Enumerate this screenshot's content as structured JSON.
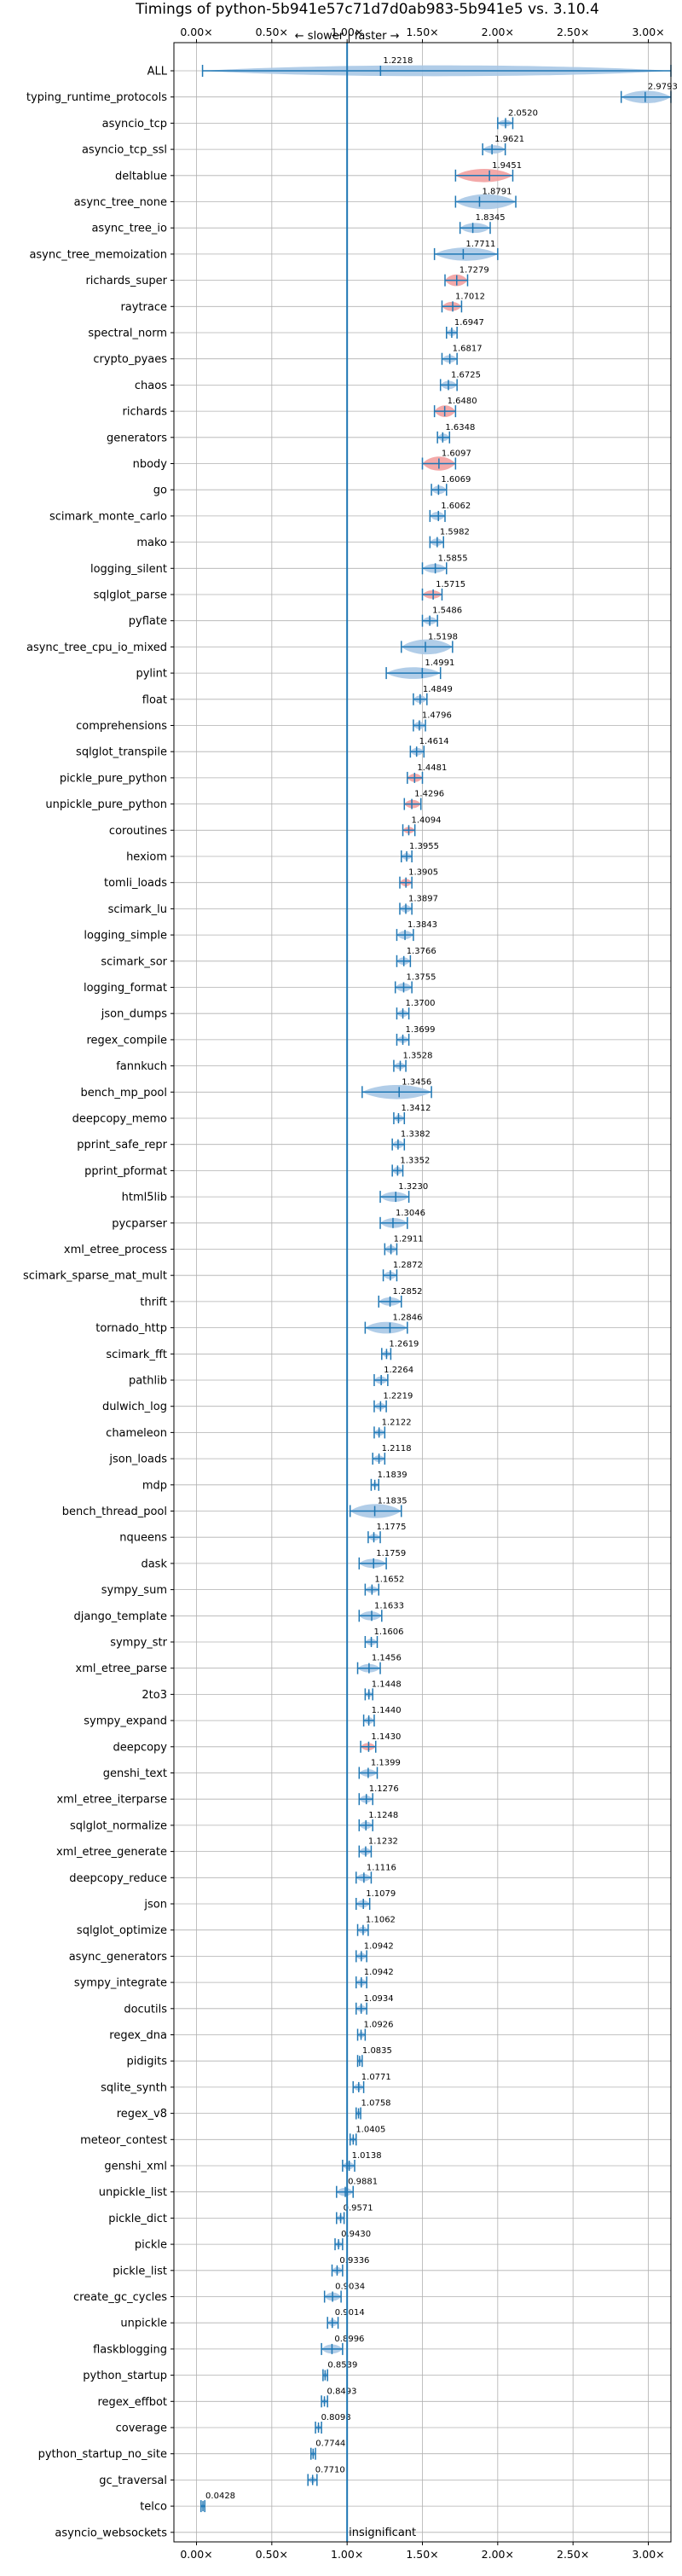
{
  "chart_data": {
    "type": "violin",
    "title": "Timings of python-5b941e57c71d7d0ab983-5b941e5 vs. 3.10.4",
    "xlim": [
      -0.15,
      3.15
    ],
    "xticks": [
      0,
      0.5,
      1,
      1.5,
      2,
      2.5,
      3
    ],
    "xticklabels": [
      "0.00×",
      "0.50×",
      "1.00×",
      "1.50×",
      "2.00×",
      "2.50×",
      "3.00×"
    ],
    "reference_line": 1.0,
    "annotation_top": "← slower | faster →",
    "annotation_bottom": "insignificant",
    "grid": true,
    "colors": {
      "line": "#1f77b4",
      "violin": "#a9c8e6",
      "violin_red": "#f2a0a0",
      "grid": "#b0b0b0"
    },
    "benchmarks": [
      {
        "name": "ALL",
        "value": 1.2218,
        "label": "1.2218",
        "min": 0.04,
        "max": 3.15,
        "width": 0.65,
        "color": "blue"
      },
      {
        "name": "typing_runtime_protocols",
        "value": 2.9793,
        "label": "2.9793",
        "min": 2.82,
        "max": 3.15,
        "width": 0.75,
        "color": "blue"
      },
      {
        "name": "asyncio_tcp",
        "value": 2.052,
        "label": "2.0520",
        "min": 2.0,
        "max": 2.1,
        "width": 0.4,
        "color": "blue"
      },
      {
        "name": "asyncio_tcp_ssl",
        "value": 1.9621,
        "label": "1.9621",
        "min": 1.9,
        "max": 2.05,
        "width": 0.5,
        "color": "blue"
      },
      {
        "name": "deltablue",
        "value": 1.9451,
        "label": "1.9451",
        "min": 1.72,
        "max": 2.1,
        "width": 0.8,
        "color": "red"
      },
      {
        "name": "async_tree_none",
        "value": 1.8791,
        "label": "1.8791",
        "min": 1.72,
        "max": 2.12,
        "width": 0.9,
        "color": "blue"
      },
      {
        "name": "async_tree_io",
        "value": 1.8345,
        "label": "1.8345",
        "min": 1.75,
        "max": 1.95,
        "width": 0.6,
        "color": "blue"
      },
      {
        "name": "async_tree_memoization",
        "value": 1.7711,
        "label": "1.7711",
        "min": 1.58,
        "max": 2.0,
        "width": 0.8,
        "color": "blue"
      },
      {
        "name": "richards_super",
        "value": 1.7279,
        "label": "1.7279",
        "min": 1.65,
        "max": 1.8,
        "width": 0.7,
        "color": "red"
      },
      {
        "name": "raytrace",
        "value": 1.7012,
        "label": "1.7012",
        "min": 1.63,
        "max": 1.76,
        "width": 0.55,
        "color": "red"
      },
      {
        "name": "spectral_norm",
        "value": 1.6947,
        "label": "1.6947",
        "min": 1.66,
        "max": 1.73,
        "width": 0.4,
        "color": "blue"
      },
      {
        "name": "crypto_pyaes",
        "value": 1.6817,
        "label": "1.6817",
        "min": 1.63,
        "max": 1.73,
        "width": 0.45,
        "color": "blue"
      },
      {
        "name": "chaos",
        "value": 1.6725,
        "label": "1.6725",
        "min": 1.62,
        "max": 1.73,
        "width": 0.5,
        "color": "blue"
      },
      {
        "name": "richards",
        "value": 1.648,
        "label": "1.6480",
        "min": 1.58,
        "max": 1.72,
        "width": 0.7,
        "color": "red"
      },
      {
        "name": "generators",
        "value": 1.6348,
        "label": "1.6348",
        "min": 1.6,
        "max": 1.68,
        "width": 0.45,
        "color": "blue"
      },
      {
        "name": "nbody",
        "value": 1.6097,
        "label": "1.6097",
        "min": 1.5,
        "max": 1.72,
        "width": 0.85,
        "color": "red"
      },
      {
        "name": "go",
        "value": 1.6069,
        "label": "1.6069",
        "min": 1.56,
        "max": 1.66,
        "width": 0.5,
        "color": "blue"
      },
      {
        "name": "scimark_monte_carlo",
        "value": 1.6062,
        "label": "1.6062",
        "min": 1.55,
        "max": 1.65,
        "width": 0.5,
        "color": "blue"
      },
      {
        "name": "mako",
        "value": 1.5982,
        "label": "1.5982",
        "min": 1.55,
        "max": 1.64,
        "width": 0.45,
        "color": "blue"
      },
      {
        "name": "logging_silent",
        "value": 1.5855,
        "label": "1.5855",
        "min": 1.5,
        "max": 1.66,
        "width": 0.55,
        "color": "blue"
      },
      {
        "name": "sqlglot_parse",
        "value": 1.5715,
        "label": "1.5715",
        "min": 1.5,
        "max": 1.63,
        "width": 0.5,
        "color": "red"
      },
      {
        "name": "pyflate",
        "value": 1.5486,
        "label": "1.5486",
        "min": 1.5,
        "max": 1.6,
        "width": 0.45,
        "color": "blue"
      },
      {
        "name": "async_tree_cpu_io_mixed",
        "value": 1.5198,
        "label": "1.5198",
        "min": 1.36,
        "max": 1.7,
        "width": 0.9,
        "color": "blue"
      },
      {
        "name": "pylint",
        "value": 1.4991,
        "label": "1.4991",
        "min": 1.26,
        "max": 1.62,
        "width": 0.7,
        "color": "blue"
      },
      {
        "name": "float",
        "value": 1.4849,
        "label": "1.4849",
        "min": 1.44,
        "max": 1.53,
        "width": 0.45,
        "color": "blue"
      },
      {
        "name": "comprehensions",
        "value": 1.4796,
        "label": "1.4796",
        "min": 1.44,
        "max": 1.52,
        "width": 0.45,
        "color": "blue"
      },
      {
        "name": "sqlglot_transpile",
        "value": 1.4614,
        "label": "1.4614",
        "min": 1.42,
        "max": 1.51,
        "width": 0.45,
        "color": "blue"
      },
      {
        "name": "pickle_pure_python",
        "value": 1.4481,
        "label": "1.4481",
        "min": 1.4,
        "max": 1.5,
        "width": 0.5,
        "color": "red"
      },
      {
        "name": "unpickle_pure_python",
        "value": 1.4296,
        "label": "1.4296",
        "min": 1.38,
        "max": 1.49,
        "width": 0.5,
        "color": "red"
      },
      {
        "name": "coroutines",
        "value": 1.4094,
        "label": "1.4094",
        "min": 1.37,
        "max": 1.45,
        "width": 0.4,
        "color": "red"
      },
      {
        "name": "hexiom",
        "value": 1.3955,
        "label": "1.3955",
        "min": 1.36,
        "max": 1.43,
        "width": 0.4,
        "color": "blue"
      },
      {
        "name": "tomli_loads",
        "value": 1.3905,
        "label": "1.3905",
        "min": 1.35,
        "max": 1.43,
        "width": 0.45,
        "color": "red"
      },
      {
        "name": "scimark_lu",
        "value": 1.3897,
        "label": "1.3897",
        "min": 1.35,
        "max": 1.43,
        "width": 0.45,
        "color": "blue"
      },
      {
        "name": "logging_simple",
        "value": 1.3843,
        "label": "1.3843",
        "min": 1.33,
        "max": 1.44,
        "width": 0.5,
        "color": "blue"
      },
      {
        "name": "scimark_sor",
        "value": 1.3766,
        "label": "1.3766",
        "min": 1.33,
        "max": 1.42,
        "width": 0.45,
        "color": "blue"
      },
      {
        "name": "logging_format",
        "value": 1.3755,
        "label": "1.3755",
        "min": 1.32,
        "max": 1.43,
        "width": 0.5,
        "color": "blue"
      },
      {
        "name": "json_dumps",
        "value": 1.37,
        "label": "1.3700",
        "min": 1.33,
        "max": 1.41,
        "width": 0.4,
        "color": "blue"
      },
      {
        "name": "regex_compile",
        "value": 1.3699,
        "label": "1.3699",
        "min": 1.33,
        "max": 1.41,
        "width": 0.4,
        "color": "blue"
      },
      {
        "name": "fannkuch",
        "value": 1.3528,
        "label": "1.3528",
        "min": 1.31,
        "max": 1.39,
        "width": 0.4,
        "color": "blue"
      },
      {
        "name": "bench_mp_pool",
        "value": 1.3456,
        "label": "1.3456",
        "min": 1.1,
        "max": 1.56,
        "width": 0.85,
        "color": "blue"
      },
      {
        "name": "deepcopy_memo",
        "value": 1.3412,
        "label": "1.3412",
        "min": 1.31,
        "max": 1.38,
        "width": 0.4,
        "color": "blue"
      },
      {
        "name": "pprint_safe_repr",
        "value": 1.3382,
        "label": "1.3382",
        "min": 1.3,
        "max": 1.38,
        "width": 0.45,
        "color": "blue"
      },
      {
        "name": "pprint_pformat",
        "value": 1.3352,
        "label": "1.3352",
        "min": 1.3,
        "max": 1.37,
        "width": 0.45,
        "color": "blue"
      },
      {
        "name": "html5lib",
        "value": 1.323,
        "label": "1.3230",
        "min": 1.22,
        "max": 1.41,
        "width": 0.6,
        "color": "blue"
      },
      {
        "name": "pycparser",
        "value": 1.3046,
        "label": "1.3046",
        "min": 1.22,
        "max": 1.4,
        "width": 0.6,
        "color": "blue"
      },
      {
        "name": "xml_etree_process",
        "value": 1.2911,
        "label": "1.2911",
        "min": 1.25,
        "max": 1.33,
        "width": 0.45,
        "color": "blue"
      },
      {
        "name": "scimark_sparse_mat_mult",
        "value": 1.2872,
        "label": "1.2872",
        "min": 1.24,
        "max": 1.33,
        "width": 0.45,
        "color": "blue"
      },
      {
        "name": "thrift",
        "value": 1.2852,
        "label": "1.2852",
        "min": 1.21,
        "max": 1.36,
        "width": 0.5,
        "color": "blue"
      },
      {
        "name": "tornado_http",
        "value": 1.2846,
        "label": "1.2846",
        "min": 1.12,
        "max": 1.4,
        "width": 0.7,
        "color": "blue"
      },
      {
        "name": "scimark_fft",
        "value": 1.2619,
        "label": "1.2619",
        "min": 1.23,
        "max": 1.29,
        "width": 0.35,
        "color": "blue"
      },
      {
        "name": "pathlib",
        "value": 1.2264,
        "label": "1.2264",
        "min": 1.18,
        "max": 1.27,
        "width": 0.45,
        "color": "blue"
      },
      {
        "name": "dulwich_log",
        "value": 1.2219,
        "label": "1.2219",
        "min": 1.18,
        "max": 1.26,
        "width": 0.4,
        "color": "blue"
      },
      {
        "name": "chameleon",
        "value": 1.2122,
        "label": "1.2122",
        "min": 1.18,
        "max": 1.25,
        "width": 0.4,
        "color": "blue"
      },
      {
        "name": "json_loads",
        "value": 1.2118,
        "label": "1.2118",
        "min": 1.17,
        "max": 1.25,
        "width": 0.4,
        "color": "blue"
      },
      {
        "name": "mdp",
        "value": 1.1839,
        "label": "1.1839",
        "min": 1.16,
        "max": 1.21,
        "width": 0.3,
        "color": "blue"
      },
      {
        "name": "bench_thread_pool",
        "value": 1.1835,
        "label": "1.1835",
        "min": 1.02,
        "max": 1.36,
        "width": 0.85,
        "color": "blue"
      },
      {
        "name": "nqueens",
        "value": 1.1775,
        "label": "1.1775",
        "min": 1.14,
        "max": 1.22,
        "width": 0.4,
        "color": "blue"
      },
      {
        "name": "dask",
        "value": 1.1759,
        "label": "1.1759",
        "min": 1.08,
        "max": 1.26,
        "width": 0.55,
        "color": "blue"
      },
      {
        "name": "sympy_sum",
        "value": 1.1652,
        "label": "1.1652",
        "min": 1.12,
        "max": 1.21,
        "width": 0.4,
        "color": "blue"
      },
      {
        "name": "django_template",
        "value": 1.1633,
        "label": "1.1633",
        "min": 1.08,
        "max": 1.23,
        "width": 0.55,
        "color": "blue"
      },
      {
        "name": "sympy_str",
        "value": 1.1606,
        "label": "1.1606",
        "min": 1.12,
        "max": 1.2,
        "width": 0.4,
        "color": "blue"
      },
      {
        "name": "xml_etree_parse",
        "value": 1.1456,
        "label": "1.1456",
        "min": 1.07,
        "max": 1.22,
        "width": 0.5,
        "color": "blue"
      },
      {
        "name": "2to3",
        "value": 1.1448,
        "label": "1.1448",
        "min": 1.12,
        "max": 1.17,
        "width": 0.35,
        "color": "blue"
      },
      {
        "name": "sympy_expand",
        "value": 1.144,
        "label": "1.1440",
        "min": 1.11,
        "max": 1.18,
        "width": 0.4,
        "color": "blue"
      },
      {
        "name": "deepcopy",
        "value": 1.143,
        "label": "1.1430",
        "min": 1.09,
        "max": 1.19,
        "width": 0.45,
        "color": "red"
      },
      {
        "name": "genshi_text",
        "value": 1.1399,
        "label": "1.1399",
        "min": 1.08,
        "max": 1.2,
        "width": 0.45,
        "color": "blue"
      },
      {
        "name": "xml_etree_iterparse",
        "value": 1.1276,
        "label": "1.1276",
        "min": 1.08,
        "max": 1.17,
        "width": 0.45,
        "color": "blue"
      },
      {
        "name": "sqlglot_normalize",
        "value": 1.1248,
        "label": "1.1248",
        "min": 1.08,
        "max": 1.17,
        "width": 0.45,
        "color": "blue"
      },
      {
        "name": "xml_etree_generate",
        "value": 1.1232,
        "label": "1.1232",
        "min": 1.08,
        "max": 1.16,
        "width": 0.45,
        "color": "blue"
      },
      {
        "name": "deepcopy_reduce",
        "value": 1.1116,
        "label": "1.1116",
        "min": 1.06,
        "max": 1.16,
        "width": 0.45,
        "color": "blue"
      },
      {
        "name": "json",
        "value": 1.1079,
        "label": "1.1079",
        "min": 1.06,
        "max": 1.15,
        "width": 0.45,
        "color": "blue"
      },
      {
        "name": "sqlglot_optimize",
        "value": 1.1062,
        "label": "1.1062",
        "min": 1.07,
        "max": 1.14,
        "width": 0.4,
        "color": "blue"
      },
      {
        "name": "async_generators",
        "value": 1.0942,
        "label": "1.0942",
        "min": 1.06,
        "max": 1.13,
        "width": 0.4,
        "color": "blue"
      },
      {
        "name": "sympy_integrate",
        "value": 1.0942,
        "label": "1.0942",
        "min": 1.06,
        "max": 1.13,
        "width": 0.4,
        "color": "blue"
      },
      {
        "name": "docutils",
        "value": 1.0934,
        "label": "1.0934",
        "min": 1.06,
        "max": 1.13,
        "width": 0.4,
        "color": "blue"
      },
      {
        "name": "regex_dna",
        "value": 1.0926,
        "label": "1.0926",
        "min": 1.07,
        "max": 1.12,
        "width": 0.35,
        "color": "blue"
      },
      {
        "name": "pidigits",
        "value": 1.0835,
        "label": "1.0835",
        "min": 1.07,
        "max": 1.1,
        "width": 0.3,
        "color": "blue"
      },
      {
        "name": "sqlite_synth",
        "value": 1.0771,
        "label": "1.0771",
        "min": 1.04,
        "max": 1.11,
        "width": 0.4,
        "color": "blue"
      },
      {
        "name": "regex_v8",
        "value": 1.0758,
        "label": "1.0758",
        "min": 1.06,
        "max": 1.09,
        "width": 0.3,
        "color": "blue"
      },
      {
        "name": "meteor_contest",
        "value": 1.0405,
        "label": "1.0405",
        "min": 1.02,
        "max": 1.06,
        "width": 0.3,
        "color": "blue"
      },
      {
        "name": "genshi_xml",
        "value": 1.0138,
        "label": "1.0138",
        "min": 0.97,
        "max": 1.05,
        "width": 0.45,
        "color": "blue"
      },
      {
        "name": "unpickle_list",
        "value": 0.9881,
        "label": "0.9881",
        "min": 0.93,
        "max": 1.04,
        "width": 0.5,
        "color": "blue"
      },
      {
        "name": "pickle_dict",
        "value": 0.9571,
        "label": "0.9571",
        "min": 0.93,
        "max": 0.98,
        "width": 0.35,
        "color": "blue"
      },
      {
        "name": "pickle",
        "value": 0.943,
        "label": "0.9430",
        "min": 0.92,
        "max": 0.97,
        "width": 0.35,
        "color": "blue"
      },
      {
        "name": "pickle_list",
        "value": 0.9336,
        "label": "0.9336",
        "min": 0.9,
        "max": 0.97,
        "width": 0.4,
        "color": "blue"
      },
      {
        "name": "create_gc_cycles",
        "value": 0.9034,
        "label": "0.9034",
        "min": 0.85,
        "max": 0.96,
        "width": 0.5,
        "color": "blue"
      },
      {
        "name": "unpickle",
        "value": 0.9014,
        "label": "0.9014",
        "min": 0.87,
        "max": 0.94,
        "width": 0.4,
        "color": "blue"
      },
      {
        "name": "flaskblogging",
        "value": 0.8996,
        "label": "0.8996",
        "min": 0.83,
        "max": 0.97,
        "width": 0.55,
        "color": "blue"
      },
      {
        "name": "python_startup",
        "value": 0.8539,
        "label": "0.8539",
        "min": 0.84,
        "max": 0.87,
        "width": 0.3,
        "color": "blue"
      },
      {
        "name": "regex_effbot",
        "value": 0.8493,
        "label": "0.8493",
        "min": 0.83,
        "max": 0.87,
        "width": 0.3,
        "color": "blue"
      },
      {
        "name": "coverage",
        "value": 0.8098,
        "label": "0.8098",
        "min": 0.79,
        "max": 0.83,
        "width": 0.3,
        "color": "blue"
      },
      {
        "name": "python_startup_no_site",
        "value": 0.7744,
        "label": "0.7744",
        "min": 0.76,
        "max": 0.79,
        "width": 0.3,
        "color": "blue"
      },
      {
        "name": "gc_traversal",
        "value": 0.771,
        "label": "0.7710",
        "min": 0.74,
        "max": 0.8,
        "width": 0.35,
        "color": "blue"
      },
      {
        "name": "telco",
        "value": 0.0428,
        "label": "0.0428",
        "min": 0.03,
        "max": 0.055,
        "width": 0.25,
        "color": "blue"
      },
      {
        "name": "asyncio_websockets",
        "value": null,
        "label": "",
        "min": null,
        "max": null,
        "width": 0,
        "color": "blue"
      }
    ]
  }
}
